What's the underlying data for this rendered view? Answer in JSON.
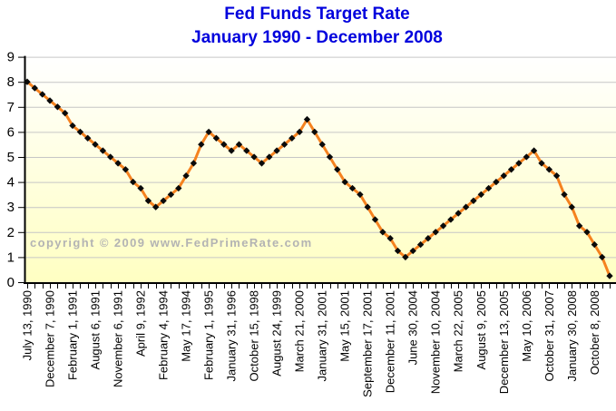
{
  "title": {
    "line1": "Fed Funds Target Rate",
    "line2": "January 1990 - December 2008"
  },
  "watermark": "copyright © 2009 www.FedPrimeRate.com",
  "colors": {
    "title_blue": "#0000DD",
    "line_orange": "#F5821F",
    "marker_black": "#0A0A0A",
    "grid_gray": "#C6C6C6",
    "axis_black": "#000000",
    "plot_bg_top": "#FFFFFF",
    "plot_bg_bottom": "#FFFFC2",
    "watermark_gray": "#B3B3B3",
    "label_black": "#000000"
  },
  "chart_data": {
    "type": "line",
    "title": "Fed Funds Target Rate",
    "subtitle": "January 1990 - December 2008",
    "ylabel": "",
    "xlabel": "",
    "ylim": [
      0,
      9
    ],
    "ytick_labels": [
      "0",
      "1",
      "2",
      "3",
      "4",
      "5",
      "6",
      "7",
      "8",
      "9"
    ],
    "grid": "horizontal gridlines at each integer",
    "legend": "none",
    "marker": "black-diamond",
    "line_style": "solid orange",
    "num_points": 78,
    "x_label_every": 3,
    "xtick_labels": [
      "July 13, 1990",
      "December 7, 1990",
      "February 1, 1991",
      "August 6, 1991",
      "November 6, 1991",
      "April 9, 1992",
      "February 4, 1994",
      "May 17, 1994",
      "February 1, 1995",
      "January 31, 1996",
      "October 15, 1998",
      "August 24, 1999",
      "March 21, 2000",
      "January 31, 2001",
      "May 15, 2001",
      "September 17, 2001",
      "December 11, 2001",
      "June 30, 2004",
      "November 10, 2004",
      "March 22, 2005",
      "August 9, 2005",
      "December 13, 2005",
      "May 10, 2006",
      "October 31, 2007",
      "January 30, 2008",
      "October 8, 2008"
    ],
    "values": [
      8.0,
      7.75,
      7.5,
      7.25,
      7.0,
      6.75,
      6.25,
      6.0,
      5.75,
      5.5,
      5.25,
      5.0,
      4.75,
      4.5,
      4.0,
      3.75,
      3.25,
      3.0,
      3.25,
      3.5,
      3.75,
      4.25,
      4.75,
      5.5,
      6.0,
      5.75,
      5.5,
      5.25,
      5.5,
      5.25,
      5.0,
      4.75,
      5.0,
      5.25,
      5.5,
      5.75,
      6.0,
      6.5,
      6.0,
      5.5,
      5.0,
      4.5,
      4.0,
      3.75,
      3.5,
      3.0,
      2.5,
      2.0,
      1.75,
      1.25,
      1.0,
      1.25,
      1.5,
      1.75,
      2.0,
      2.25,
      2.5,
      2.75,
      3.0,
      3.25,
      3.5,
      3.75,
      4.0,
      4.25,
      4.5,
      4.75,
      5.0,
      5.25,
      4.75,
      4.5,
      4.25,
      3.5,
      3.0,
      2.25,
      2.0,
      1.5,
      1.0,
      0.25
    ]
  }
}
